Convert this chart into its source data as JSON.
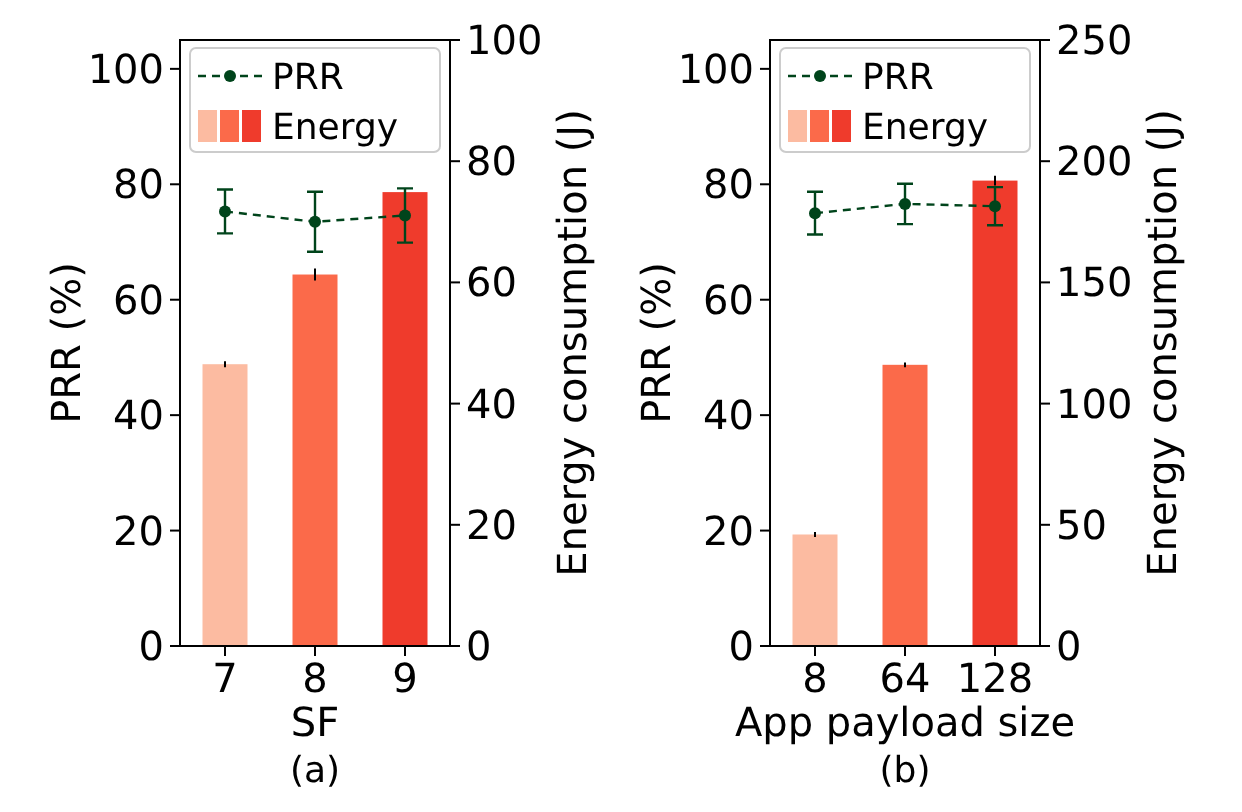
{
  "chart_data": [
    {
      "type": "bar",
      "xlabel": "SF",
      "ylabel": "PRR (%)",
      "y2label": "Energy consumption (J)",
      "categories": [
        "7",
        "8",
        "9"
      ],
      "ylim": [
        0,
        105
      ],
      "yticks": [
        0,
        20,
        40,
        60,
        80,
        100
      ],
      "y2lim": [
        0,
        100
      ],
      "y2ticks": [
        0,
        20,
        40,
        60,
        80,
        100
      ],
      "legend": "top",
      "annotations": [
        "(a)"
      ],
      "series": [
        {
          "name": "PRR",
          "type": "line",
          "color": "#00441b",
          "marker": "circle",
          "line_style": "dashed",
          "values": [
            75.3,
            73.5,
            74.6
          ],
          "errors": [
            3.8,
            5.2,
            4.7
          ]
        },
        {
          "name": "Energy",
          "axis": "y2",
          "colors": [
            "#fcbba1",
            "#fb6a4a",
            "#ef3b2c"
          ],
          "values": [
            46.5,
            61.3,
            74.9
          ],
          "errors": [
            0.5,
            1,
            0.5
          ]
        }
      ]
    },
    {
      "type": "bar",
      "xlabel": "App payload size",
      "ylabel": "PRR (%)",
      "y2label": "Energy consumption (J)",
      "categories": [
        "8",
        "64",
        "128"
      ],
      "ylim": [
        0,
        105
      ],
      "yticks": [
        0,
        20,
        40,
        60,
        80,
        100
      ],
      "y2lim": [
        0,
        250
      ],
      "y2ticks": [
        0,
        50,
        100,
        150,
        200,
        250
      ],
      "legend": "top",
      "annotations": [
        "(b)"
      ],
      "series": [
        {
          "name": "PRR",
          "type": "line",
          "color": "#00441b",
          "marker": "circle",
          "line_style": "dashed",
          "values": [
            75.0,
            76.6,
            76.2
          ],
          "errors": [
            3.7,
            3.5,
            3.3
          ]
        },
        {
          "name": "Energy",
          "axis": "y2",
          "colors": [
            "#fcbba1",
            "#fb6a4a",
            "#ef3b2c"
          ],
          "values": [
            46,
            116,
            192
          ],
          "errors": [
            1,
            1,
            2
          ]
        }
      ]
    }
  ]
}
